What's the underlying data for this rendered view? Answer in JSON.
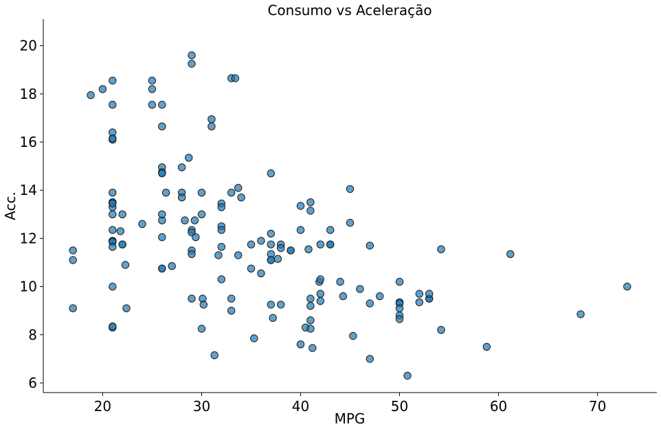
{
  "chart_data": {
    "type": "scatter",
    "title": "Consumo vs Aceleração",
    "xlabel": "MPG",
    "ylabel": "Acc.",
    "xlim": [
      14,
      76
    ],
    "ylim": [
      5.6,
      21.1
    ],
    "xticks": [
      20,
      30,
      40,
      50,
      60,
      70
    ],
    "yticks": [
      6,
      8,
      10,
      12,
      14,
      16,
      18,
      20
    ],
    "grid": false,
    "legend": "none",
    "marker_color": "#1f77b4",
    "marker_opacity": 0.7,
    "edge_color": "#1a1a1a",
    "x": [
      17,
      17,
      17,
      18.8,
      20,
      21,
      21,
      21,
      21,
      21,
      21,
      21,
      21,
      21,
      21,
      21,
      21,
      21,
      21,
      21,
      21,
      21,
      21,
      21,
      21.8,
      22,
      22,
      22,
      22.3,
      22.4,
      24,
      25,
      25,
      25,
      26,
      26,
      26,
      26,
      26,
      26,
      26,
      26,
      26,
      26,
      26.4,
      27,
      28,
      28,
      28,
      28.3,
      28.7,
      29,
      29,
      29,
      29,
      29,
      29,
      29,
      29.3,
      29.4,
      30,
      30,
      30,
      30.1,
      30.2,
      31,
      31,
      31.3,
      31.7,
      32,
      32,
      32,
      32,
      32,
      32,
      33,
      33,
      33,
      33,
      33.4,
      33.7,
      33.7,
      34,
      35,
      35,
      35.3,
      36,
      36,
      37,
      37,
      37,
      37,
      37,
      37,
      37,
      37.2,
      37.7,
      38,
      38,
      38,
      39,
      39,
      40,
      40,
      40,
      40.5,
      40.8,
      41,
      41,
      41,
      41,
      41,
      41,
      41.2,
      41.9,
      42,
      42,
      42,
      42,
      43,
      43,
      43,
      44,
      44.3,
      45,
      45,
      45.3,
      46,
      47,
      47,
      47,
      48,
      50,
      50,
      50,
      50,
      50,
      50,
      50.8,
      52,
      52,
      53,
      53,
      53,
      54.2,
      54.2,
      58.8,
      61.2,
      68.3,
      73
    ],
    "y": [
      11.5,
      11.1,
      9.1,
      17.95,
      18.2,
      18.55,
      17.55,
      16.4,
      16.1,
      16.15,
      13.9,
      13.5,
      13.5,
      13.3,
      13.0,
      12.35,
      11.9,
      11.9,
      11.85,
      11.65,
      10.0,
      8.3,
      8.35,
      13.45,
      12.3,
      13.0,
      11.75,
      11.75,
      10.9,
      9.1,
      12.6,
      18.55,
      18.2,
      17.55,
      17.55,
      16.65,
      14.95,
      14.75,
      12.75,
      13.0,
      12.05,
      10.75,
      10.75,
      14.7,
      13.9,
      10.85,
      14.95,
      13.9,
      13.7,
      12.75,
      15.35,
      19.6,
      19.25,
      12.35,
      12.25,
      11.5,
      11.35,
      9.5,
      12.75,
      12.05,
      13.9,
      13.0,
      8.25,
      9.5,
      9.25,
      16.95,
      16.65,
      7.15,
      11.3,
      13.45,
      12.5,
      12.35,
      11.65,
      10.3,
      13.3,
      13.9,
      9.5,
      9.0,
      18.65,
      18.65,
      14.1,
      11.3,
      13.7,
      11.75,
      10.75,
      7.85,
      11.9,
      10.55,
      14.7,
      12.2,
      11.75,
      11.35,
      11.1,
      11.1,
      9.25,
      8.7,
      11.15,
      11.75,
      11.6,
      9.25,
      11.5,
      11.5,
      13.35,
      12.35,
      7.6,
      8.3,
      11.55,
      13.5,
      13.15,
      9.5,
      9.2,
      8.6,
      8.25,
      7.45,
      10.2,
      10.3,
      11.75,
      9.4,
      9.7,
      12.35,
      11.75,
      11.75,
      10.2,
      9.6,
      14.05,
      12.65,
      7.95,
      9.9,
      11.7,
      9.3,
      7.0,
      9.6,
      10.2,
      9.35,
      9.3,
      9.1,
      8.8,
      8.65,
      6.3,
      9.7,
      9.35,
      9.5,
      9.5,
      9.7,
      11.55,
      8.2,
      7.5,
      11.35,
      8.85,
      10.0
    ]
  }
}
